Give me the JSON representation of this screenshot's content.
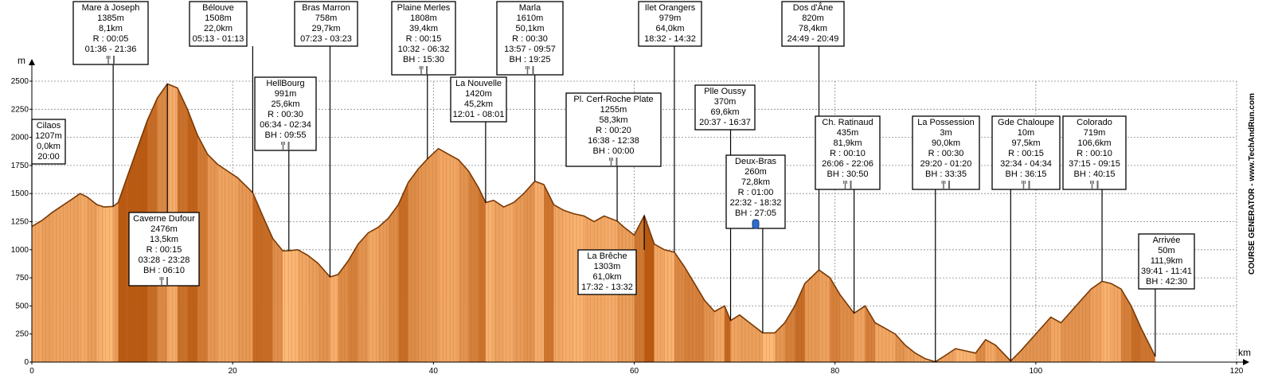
{
  "chart_data": {
    "type": "area",
    "x_unit": "km",
    "y_unit": "m",
    "xlim": [
      0,
      120
    ],
    "ylim": [
      0,
      2500
    ],
    "x_ticks": [
      0,
      20,
      40,
      60,
      80,
      100,
      120
    ],
    "y_ticks": [
      0,
      250,
      500,
      750,
      1000,
      1250,
      1500,
      1750,
      2000,
      2250,
      2500
    ],
    "grid": true,
    "watermark": "COURSE GENERATOR - www.TechAndRun.com",
    "colors": {
      "fill_light": "#fdba7a",
      "fill_dark": "#c25a0c",
      "stroke": "#7a3a05",
      "box_border": "#000000"
    },
    "profile": [
      [
        0,
        1207
      ],
      [
        1,
        1260
      ],
      [
        2,
        1330
      ],
      [
        3,
        1390
      ],
      [
        4,
        1450
      ],
      [
        4.8,
        1500
      ],
      [
        5.5,
        1470
      ],
      [
        6.5,
        1400
      ],
      [
        7.2,
        1380
      ],
      [
        8.1,
        1385
      ],
      [
        8.6,
        1420
      ],
      [
        9.5,
        1650
      ],
      [
        10.5,
        1900
      ],
      [
        11.5,
        2150
      ],
      [
        12.5,
        2350
      ],
      [
        13.5,
        2476
      ],
      [
        14.5,
        2440
      ],
      [
        15.5,
        2250
      ],
      [
        16.5,
        2020
      ],
      [
        17.5,
        1850
      ],
      [
        18.5,
        1760
      ],
      [
        19.5,
        1700
      ],
      [
        20.5,
        1640
      ],
      [
        22,
        1508
      ],
      [
        23,
        1300
      ],
      [
        24,
        1100
      ],
      [
        25,
        990
      ],
      [
        25.6,
        991
      ],
      [
        26.5,
        1000
      ],
      [
        27.5,
        950
      ],
      [
        28.5,
        880
      ],
      [
        29.7,
        758
      ],
      [
        30.5,
        780
      ],
      [
        31.5,
        900
      ],
      [
        32.5,
        1050
      ],
      [
        33.5,
        1150
      ],
      [
        34.5,
        1200
      ],
      [
        35.5,
        1280
      ],
      [
        36.5,
        1400
      ],
      [
        37.5,
        1600
      ],
      [
        38.5,
        1720
      ],
      [
        39.4,
        1808
      ],
      [
        40.5,
        1900
      ],
      [
        41.5,
        1850
      ],
      [
        42.5,
        1800
      ],
      [
        43.5,
        1700
      ],
      [
        44.5,
        1550
      ],
      [
        45.2,
        1420
      ],
      [
        46,
        1440
      ],
      [
        47,
        1380
      ],
      [
        48,
        1420
      ],
      [
        49,
        1500
      ],
      [
        50.1,
        1610
      ],
      [
        51,
        1580
      ],
      [
        52,
        1400
      ],
      [
        53,
        1350
      ],
      [
        54,
        1320
      ],
      [
        55,
        1300
      ],
      [
        56,
        1250
      ],
      [
        57,
        1300
      ],
      [
        58.3,
        1255
      ],
      [
        59,
        1200
      ],
      [
        60,
        1130
      ],
      [
        61,
        1303
      ],
      [
        62,
        1050
      ],
      [
        63,
        1000
      ],
      [
        64,
        979
      ],
      [
        65,
        850
      ],
      [
        66,
        700
      ],
      [
        67,
        550
      ],
      [
        68,
        450
      ],
      [
        69,
        500
      ],
      [
        69.6,
        370
      ],
      [
        70.5,
        420
      ],
      [
        71.5,
        350
      ],
      [
        72.8,
        260
      ],
      [
        74,
        260
      ],
      [
        75,
        350
      ],
      [
        76,
        500
      ],
      [
        77,
        700
      ],
      [
        78.4,
        820
      ],
      [
        79.5,
        750
      ],
      [
        80.5,
        600
      ],
      [
        81.9,
        435
      ],
      [
        83,
        500
      ],
      [
        84,
        350
      ],
      [
        85,
        300
      ],
      [
        86,
        250
      ],
      [
        87,
        150
      ],
      [
        88,
        80
      ],
      [
        89,
        30
      ],
      [
        90,
        3
      ],
      [
        91,
        60
      ],
      [
        92,
        120
      ],
      [
        93,
        100
      ],
      [
        94,
        80
      ],
      [
        95,
        200
      ],
      [
        96,
        150
      ],
      [
        97.5,
        10
      ],
      [
        98.5,
        100
      ],
      [
        99.5,
        200
      ],
      [
        100.5,
        300
      ],
      [
        101.5,
        400
      ],
      [
        102.5,
        350
      ],
      [
        103.5,
        450
      ],
      [
        104.5,
        550
      ],
      [
        105.5,
        650
      ],
      [
        106.6,
        719
      ],
      [
        107.5,
        700
      ],
      [
        108.5,
        650
      ],
      [
        109.5,
        500
      ],
      [
        110.5,
        300
      ],
      [
        111.9,
        50
      ]
    ],
    "annotations": [
      {
        "km": 0.0,
        "side": "top",
        "lines": [
          "Cilaos",
          "1207m",
          "0,0km",
          "20:00"
        ],
        "icon": ""
      },
      {
        "km": 8.1,
        "side": "top",
        "lines": [
          "Mare à Joseph",
          "1385m",
          "8,1km",
          "R : 00:05",
          "01:36 - 21:36"
        ],
        "icon": "fork-knife"
      },
      {
        "km": 13.5,
        "side": "bottom",
        "lines": [
          "Caverne Dufour",
          "2476m",
          "13,5km",
          "R : 00:15",
          "03:28 - 23:28",
          "BH : 06:10"
        ],
        "icon": "fork-knife"
      },
      {
        "km": 22.0,
        "side": "top",
        "lines": [
          "Bélouve",
          "1508m",
          "22,0km",
          "05:13 - 01:13"
        ],
        "icon": ""
      },
      {
        "km": 25.6,
        "side": "top",
        "lines": [
          "HellBourg",
          "991m",
          "25,6km",
          "R : 00:30",
          "06:34 - 02:34",
          "BH : 09:55"
        ],
        "icon": "fork-knife"
      },
      {
        "km": 29.7,
        "side": "top",
        "lines": [
          "Bras Marron",
          "758m",
          "29,7km",
          "07:23 - 03:23"
        ],
        "icon": ""
      },
      {
        "km": 39.4,
        "side": "top",
        "lines": [
          "Plaine Merles",
          "1808m",
          "39,4km",
          "R : 00:15",
          "10:32 - 06:32",
          "BH : 15:30"
        ],
        "icon": "fork-knife"
      },
      {
        "km": 45.2,
        "side": "top",
        "lines": [
          "La Nouvelle",
          "1420m",
          "45,2km",
          "12:01 - 08:01"
        ],
        "icon": ""
      },
      {
        "km": 50.1,
        "side": "top",
        "lines": [
          "Marla",
          "1610m",
          "50,1km",
          "R : 00:30",
          "13:57 - 09:57",
          "BH : 19:25"
        ],
        "icon": "fork-knife"
      },
      {
        "km": 58.3,
        "side": "top",
        "lines": [
          "Pl. Cerf-Roche Plate",
          "1255m",
          "58,3km",
          "R : 00:20",
          "16:38 - 12:38",
          "BH : 00:00"
        ],
        "icon": "fork-knife"
      },
      {
        "km": 61.0,
        "side": "bottom",
        "lines": [
          "La Brêche",
          "1303m",
          "61,0km",
          "17:32 - 13:32"
        ],
        "icon": ""
      },
      {
        "km": 64.0,
        "side": "top",
        "lines": [
          "Ilet Orangers",
          "979m",
          "64,0km",
          "18:32 - 14:32"
        ],
        "icon": ""
      },
      {
        "km": 69.6,
        "side": "top",
        "lines": [
          "Plle Oussy",
          "370m",
          "69,6km",
          "20:37 - 16:37"
        ],
        "icon": ""
      },
      {
        "km": 72.8,
        "side": "top",
        "lines": [
          "Deux-Bras",
          "260m",
          "72,8km",
          "R : 01:00",
          "22:32 - 18:32",
          "BH : 27:05"
        ],
        "icon": "drop-bag"
      },
      {
        "km": 78.4,
        "side": "top",
        "lines": [
          "Dos d'Âne",
          "820m",
          "78,4km",
          "24:49 - 20:49"
        ],
        "icon": ""
      },
      {
        "km": 81.9,
        "side": "top",
        "lines": [
          "Ch. Ratinaud",
          "435m",
          "81,9km",
          "R : 00:10",
          "26:06 - 22:06",
          "BH : 30:50"
        ],
        "icon": "fork-knife"
      },
      {
        "km": 90.0,
        "side": "top",
        "lines": [
          "La Possession",
          "3m",
          "90,0km",
          "R : 00:30",
          "29:20 - 01:20",
          "BH : 33:35"
        ],
        "icon": "fork-knife"
      },
      {
        "km": 97.5,
        "side": "top",
        "lines": [
          "Gde Chaloupe",
          "10m",
          "97,5km",
          "R : 00:15",
          "32:34 - 04:34",
          "BH : 36:15"
        ],
        "icon": "fork-knife"
      },
      {
        "km": 106.6,
        "side": "top",
        "lines": [
          "Colorado",
          "719m",
          "106,6km",
          "R : 00:10",
          "37:15 - 09:15",
          "BH : 40:15"
        ],
        "icon": "fork-knife"
      },
      {
        "km": 111.9,
        "side": "top",
        "lines": [
          "Arrivée",
          "50m",
          "111,9km",
          "39:41 - 11:41",
          "BH : 42:30"
        ],
        "icon": ""
      }
    ]
  }
}
